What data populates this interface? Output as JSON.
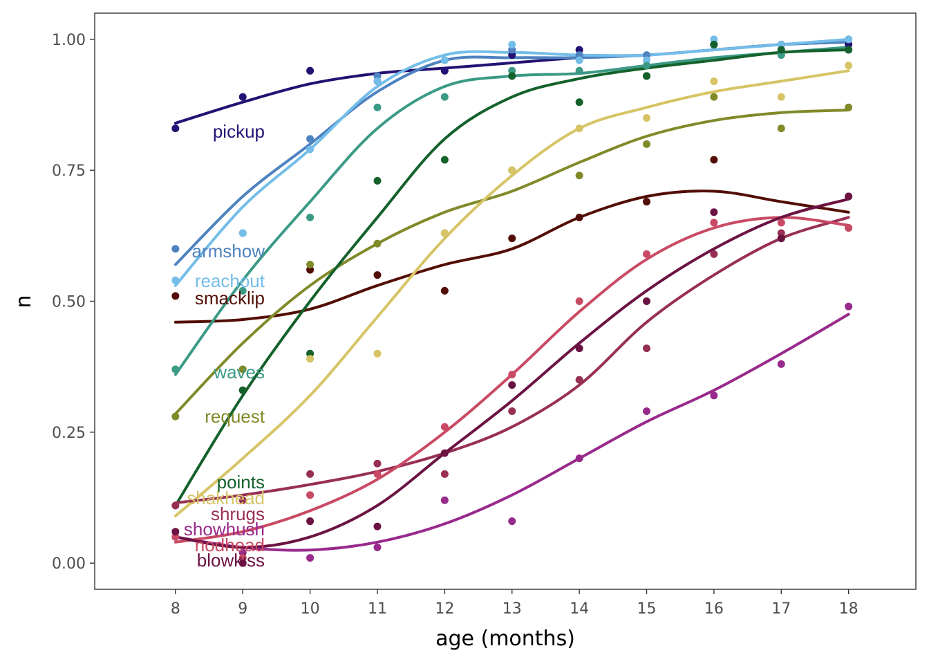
{
  "chart_data": {
    "type": "line",
    "xlabel": "age (months)",
    "ylabel": "n",
    "xlim": [
      6.8,
      19.0
    ],
    "ylim": [
      -0.05,
      1.05
    ],
    "x_ticks": [
      8,
      9,
      10,
      11,
      12,
      13,
      14,
      15,
      16,
      17,
      18
    ],
    "y_ticks": [
      0.0,
      0.25,
      0.5,
      0.75,
      1.0
    ],
    "y_tick_labels": [
      "0.00",
      "0.25",
      "0.50",
      "0.75",
      "1.00"
    ],
    "grid": false,
    "legend": "direct labels at left of lines",
    "x": [
      8,
      9,
      10,
      11,
      12,
      13,
      14,
      15,
      16,
      17,
      18
    ],
    "series": [
      {
        "name": "pickup",
        "color": "#231273",
        "points": [
          0.83,
          0.89,
          0.94,
          0.92,
          0.94,
          0.97,
          0.98,
          0.93,
          0.99,
          0.99,
          0.99
        ],
        "smooth": [
          0.84,
          0.88,
          0.915,
          0.935,
          0.945,
          0.955,
          0.965,
          0.97,
          0.98,
          0.99,
          0.995
        ]
      },
      {
        "name": "armshow",
        "color": "#4e82c0",
        "points": [
          0.6,
          0.63,
          0.81,
          0.93,
          0.96,
          0.98,
          0.97,
          0.97,
          0.99,
          0.99,
          1.0
        ],
        "smooth": [
          0.57,
          0.7,
          0.8,
          0.9,
          0.96,
          0.965,
          0.965,
          0.97,
          0.98,
          0.99,
          0.995
        ]
      },
      {
        "name": "reachout",
        "color": "#74bde8",
        "points": [
          0.54,
          0.63,
          0.79,
          0.92,
          0.96,
          0.99,
          0.96,
          0.96,
          1.0,
          0.99,
          1.0
        ],
        "smooth": [
          0.53,
          0.68,
          0.79,
          0.91,
          0.97,
          0.975,
          0.97,
          0.97,
          0.98,
          0.99,
          1.0
        ]
      },
      {
        "name": "smacklip",
        "color": "#520e05",
        "points": [
          0.51,
          0.33,
          0.56,
          0.55,
          0.52,
          0.62,
          0.66,
          0.69,
          0.77,
          0.62,
          0.7
        ],
        "smooth": [
          0.46,
          0.465,
          0.485,
          0.53,
          0.57,
          0.6,
          0.66,
          0.7,
          0.71,
          0.69,
          0.67
        ]
      },
      {
        "name": "waves",
        "color": "#3b9a86",
        "points": [
          0.37,
          0.52,
          0.66,
          0.87,
          0.89,
          0.94,
          0.94,
          0.95,
          0.99,
          0.97,
          0.98
        ],
        "smooth": [
          0.36,
          0.54,
          0.69,
          0.83,
          0.91,
          0.93,
          0.935,
          0.95,
          0.965,
          0.975,
          0.985
        ]
      },
      {
        "name": "request",
        "color": "#818a29",
        "points": [
          0.28,
          0.37,
          0.57,
          0.61,
          0.63,
          0.75,
          0.74,
          0.8,
          0.89,
          0.83,
          0.87
        ],
        "smooth": [
          0.285,
          0.42,
          0.53,
          0.61,
          0.67,
          0.71,
          0.765,
          0.815,
          0.845,
          0.86,
          0.865
        ]
      },
      {
        "name": "points",
        "color": "#14612b",
        "points": [
          0.11,
          0.33,
          0.4,
          0.73,
          0.77,
          0.93,
          0.88,
          0.93,
          0.99,
          0.98,
          0.98
        ],
        "smooth": [
          0.11,
          0.32,
          0.5,
          0.66,
          0.81,
          0.89,
          0.925,
          0.945,
          0.96,
          0.975,
          0.98
        ]
      },
      {
        "name": "shakhead",
        "color": "#d6c466",
        "points": [
          0.11,
          0.12,
          0.39,
          0.4,
          0.63,
          0.75,
          0.83,
          0.85,
          0.92,
          0.89,
          0.95
        ],
        "smooth": [
          0.09,
          0.2,
          0.32,
          0.47,
          0.62,
          0.74,
          0.83,
          0.87,
          0.9,
          0.92,
          0.94
        ]
      },
      {
        "name": "shrugs",
        "color": "#982f55",
        "points": [
          0.11,
          0.12,
          0.17,
          0.19,
          0.17,
          0.29,
          0.35,
          0.41,
          0.59,
          0.63,
          0.64
        ],
        "smooth": [
          0.115,
          0.13,
          0.15,
          0.175,
          0.21,
          0.26,
          0.34,
          0.46,
          0.55,
          0.62,
          0.66
        ]
      },
      {
        "name": "showhush",
        "color": "#982a8c",
        "points": [
          0.05,
          0.02,
          0.01,
          0.03,
          0.12,
          0.08,
          0.2,
          0.29,
          0.32,
          0.38,
          0.49
        ],
        "smooth": [
          0.05,
          0.03,
          0.025,
          0.04,
          0.075,
          0.13,
          0.2,
          0.27,
          0.33,
          0.4,
          0.475
        ]
      },
      {
        "name": "nodhead",
        "color": "#c94a64",
        "points": [
          0.05,
          0.01,
          0.13,
          0.17,
          0.26,
          0.36,
          0.5,
          0.59,
          0.65,
          0.65,
          0.64
        ],
        "smooth": [
          0.04,
          0.06,
          0.1,
          0.16,
          0.25,
          0.36,
          0.48,
          0.58,
          0.64,
          0.66,
          0.645
        ]
      },
      {
        "name": "blowkiss",
        "color": "#6b1342",
        "points": [
          0.06,
          0.0,
          0.08,
          0.07,
          0.21,
          0.34,
          0.41,
          0.5,
          0.67,
          0.62,
          0.7
        ],
        "smooth": [
          0.05,
          0.03,
          0.05,
          0.11,
          0.21,
          0.31,
          0.42,
          0.52,
          0.6,
          0.66,
          0.695
        ]
      }
    ]
  }
}
